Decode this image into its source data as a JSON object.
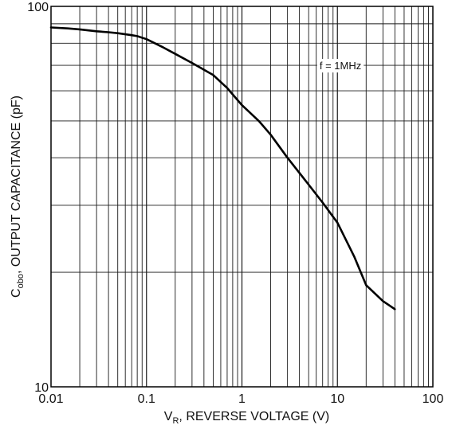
{
  "chart_data": {
    "type": "line",
    "title": "",
    "xlabel": {
      "main": "V",
      "sub": "R",
      "rest": ", REVERSE VOLTAGE (V)"
    },
    "ylabel": {
      "main": "C",
      "sub": "obo",
      "rest": ", OUTPUT CAPACITANCE (pF)"
    },
    "x_scale": "log",
    "y_scale": "log",
    "xlim": [
      0.01,
      100
    ],
    "ylim": [
      10,
      100
    ],
    "x_ticks": [
      {
        "value": 0.01,
        "label": "0.01"
      },
      {
        "value": 0.1,
        "label": "0.1"
      },
      {
        "value": 1,
        "label": "1"
      },
      {
        "value": 10,
        "label": "10"
      },
      {
        "value": 100,
        "label": "100"
      }
    ],
    "y_ticks": [
      {
        "value": 10,
        "label": "10"
      },
      {
        "value": 100,
        "label": "100"
      }
    ],
    "grid": true,
    "annotation": "f = 1MHz",
    "series": [
      {
        "x": [
          0.01,
          0.015,
          0.02,
          0.03,
          0.04,
          0.05,
          0.07,
          0.08,
          0.1,
          0.15,
          0.2,
          0.3,
          0.5,
          0.7,
          1,
          1.5,
          2,
          3,
          5,
          7,
          10,
          15,
          20,
          30,
          40
        ],
        "y": [
          88,
          87.5,
          87,
          86,
          85.5,
          85,
          84,
          83.5,
          82,
          78,
          75,
          71,
          66,
          61,
          55,
          50,
          46,
          40,
          34,
          30.5,
          27,
          22,
          18.5,
          16.8,
          16
        ]
      }
    ]
  }
}
